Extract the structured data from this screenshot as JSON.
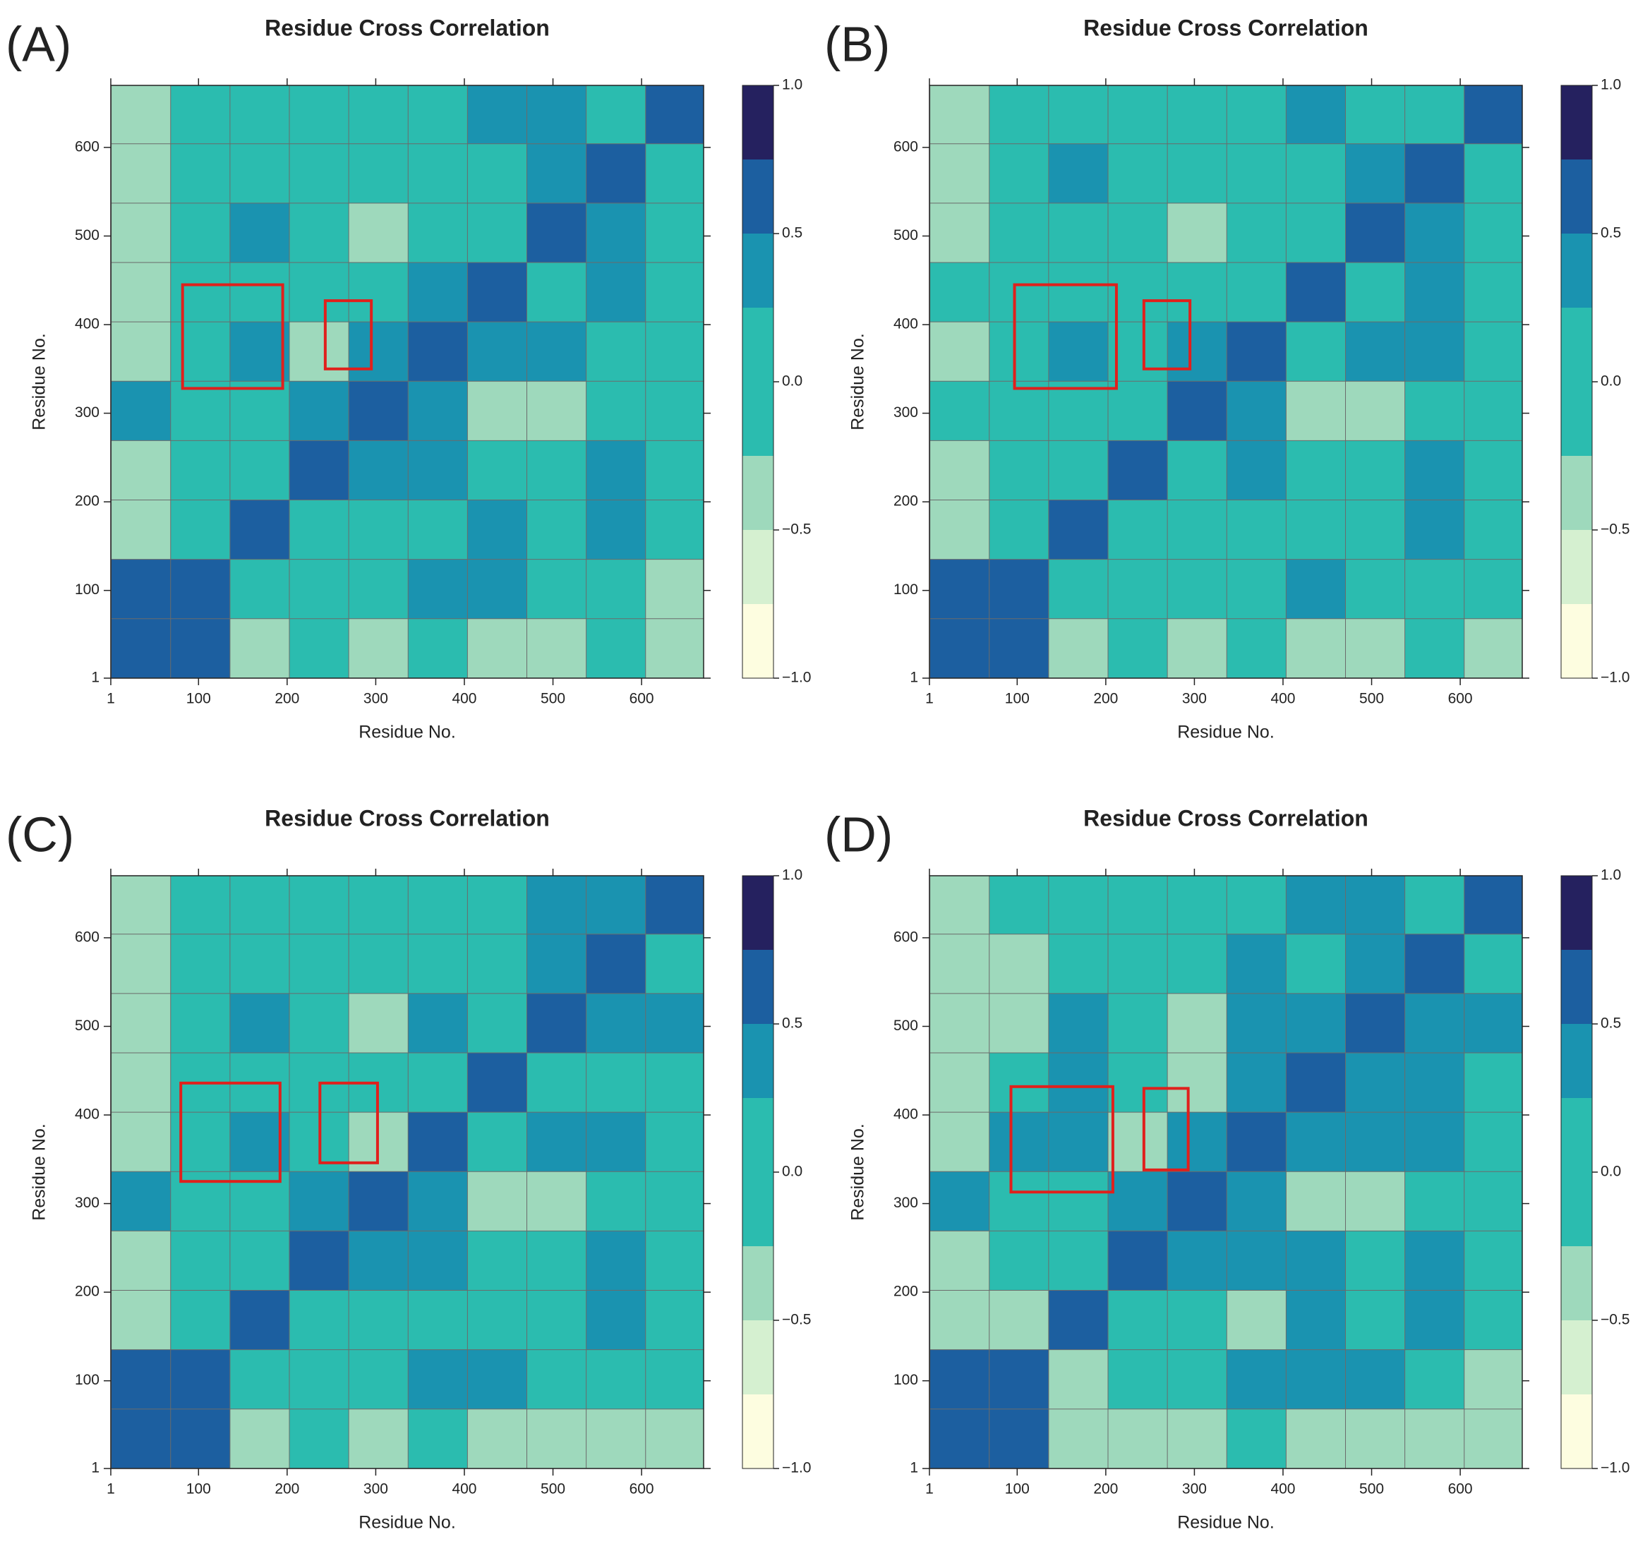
{
  "chart_data": [
    {
      "type": "contour",
      "panel": "(A)",
      "title": "Residue Cross Correlation",
      "xlabel": "Residue No.",
      "ylabel": "Residue No.",
      "xlim": [
        1,
        670
      ],
      "ylim": [
        1,
        670
      ],
      "xticks": [
        1,
        100,
        200,
        300,
        400,
        500,
        600
      ],
      "yticks": [
        1,
        100,
        200,
        300,
        400,
        500,
        600
      ],
      "x": [
        35,
        102,
        169,
        236,
        303,
        370,
        437,
        504,
        571,
        638
      ],
      "y": [
        35,
        102,
        169,
        236,
        303,
        370,
        437,
        504,
        571,
        638
      ],
      "values": [
        [
          0.6,
          0.5,
          -0.3,
          0.1,
          -0.3,
          0.1,
          -0.3,
          -0.3,
          0.1,
          -0.3
        ],
        [
          0.5,
          0.6,
          0.1,
          0.1,
          0.1,
          0.3,
          0.3,
          0.1,
          0.1,
          -0.3
        ],
        [
          -0.3,
          0.1,
          0.6,
          0.1,
          0.1,
          0.1,
          0.3,
          0.1,
          0.3,
          0.1
        ],
        [
          -0.3,
          0.1,
          0.1,
          0.6,
          0.3,
          0.3,
          0.1,
          0.1,
          0.3,
          0.1
        ],
        [
          0.3,
          0.1,
          0.1,
          0.3,
          0.6,
          0.3,
          -0.3,
          -0.3,
          0.1,
          0.1
        ],
        [
          -0.3,
          0.1,
          0.3,
          -0.3,
          0.3,
          0.6,
          0.3,
          0.3,
          0.1,
          0.1
        ],
        [
          -0.3,
          0.1,
          0.1,
          0.1,
          0.1,
          0.3,
          0.6,
          0.1,
          0.3,
          0.1
        ],
        [
          -0.3,
          0.1,
          0.3,
          0.1,
          -0.3,
          0.1,
          0.1,
          0.6,
          0.3,
          0.1
        ],
        [
          -0.3,
          0.1,
          0.1,
          0.1,
          0.1,
          0.1,
          0.1,
          0.3,
          0.6,
          0.1
        ],
        [
          -0.3,
          0.1,
          0.1,
          0.1,
          0.1,
          0.1,
          0.3,
          0.3,
          0.1,
          0.6
        ]
      ],
      "levels": [
        -1,
        -0.75,
        -0.5,
        -0.25,
        0.25,
        0.5,
        0.75,
        1
      ],
      "colors": [
        "#fdfde0",
        "#d5f0d0",
        "#9ed9bc",
        "#2bbcaf",
        "#1a93b0",
        "#1c5fa0",
        "#25215f"
      ],
      "cbar_ticks": [
        {
          "value": -1,
          "label": "−1.0"
        },
        {
          "value": -0.5,
          "label": "−0.5"
        },
        {
          "value": 0,
          "label": "0.0"
        },
        {
          "value": 0.5,
          "label": "0.5"
        },
        {
          "value": 1,
          "label": "1.0"
        }
      ],
      "highlights": [
        {
          "x": [
            82,
            195
          ],
          "y": [
            328,
            445
          ]
        },
        {
          "x": [
            243,
            295
          ],
          "y": [
            350,
            427
          ]
        }
      ],
      "highlight_color": "#e0201c"
    },
    {
      "type": "contour",
      "panel": "(B)",
      "title": "Residue Cross Correlation",
      "xlabel": "Residue No.",
      "ylabel": "Residue No.",
      "xlim": [
        1,
        670
      ],
      "ylim": [
        1,
        670
      ],
      "xticks": [
        1,
        100,
        200,
        300,
        400,
        500,
        600
      ],
      "yticks": [
        1,
        100,
        200,
        300,
        400,
        500,
        600
      ],
      "x": [
        35,
        102,
        169,
        236,
        303,
        370,
        437,
        504,
        571,
        638
      ],
      "y": [
        35,
        102,
        169,
        236,
        303,
        370,
        437,
        504,
        571,
        638
      ],
      "values": [
        [
          0.6,
          0.5,
          -0.3,
          0.1,
          -0.3,
          0.1,
          -0.3,
          -0.3,
          0.1,
          -0.3
        ],
        [
          0.5,
          0.6,
          0.1,
          0.1,
          0.1,
          0.1,
          0.3,
          0.1,
          0.1,
          0.1
        ],
        [
          -0.3,
          0.1,
          0.6,
          0.1,
          0.1,
          0.1,
          0.1,
          0.1,
          0.3,
          0.1
        ],
        [
          -0.3,
          0.1,
          0.1,
          0.6,
          0.1,
          0.3,
          0.1,
          0.1,
          0.3,
          0.1
        ],
        [
          0.1,
          0.1,
          0.1,
          0.1,
          0.6,
          0.3,
          -0.3,
          -0.3,
          0.1,
          0.1
        ],
        [
          -0.3,
          0.1,
          0.3,
          0.1,
          0.3,
          0.6,
          0.1,
          0.3,
          0.3,
          0.1
        ],
        [
          0.1,
          0.1,
          0.1,
          0.1,
          0.1,
          0.1,
          0.6,
          0.1,
          0.3,
          0.1
        ],
        [
          -0.3,
          0.1,
          0.1,
          0.1,
          -0.3,
          0.1,
          0.1,
          0.6,
          0.3,
          0.1
        ],
        [
          -0.3,
          0.1,
          0.3,
          0.1,
          0.1,
          0.1,
          0.1,
          0.3,
          0.6,
          0.1
        ],
        [
          -0.3,
          0.1,
          0.1,
          0.1,
          0.1,
          0.1,
          0.3,
          0.1,
          0.1,
          0.6
        ]
      ],
      "levels": [
        -1,
        -0.75,
        -0.5,
        -0.25,
        0.25,
        0.5,
        0.75,
        1
      ],
      "colors": [
        "#fdfde0",
        "#d5f0d0",
        "#9ed9bc",
        "#2bbcaf",
        "#1a93b0",
        "#1c5fa0",
        "#25215f"
      ],
      "cbar_ticks": [
        {
          "value": -1,
          "label": "−1.0"
        },
        {
          "value": -0.5,
          "label": "−0.5"
        },
        {
          "value": 0,
          "label": "0.0"
        },
        {
          "value": 0.5,
          "label": "0.5"
        },
        {
          "value": 1,
          "label": "1.0"
        }
      ],
      "highlights": [
        {
          "x": [
            97,
            212
          ],
          "y": [
            328,
            445
          ]
        },
        {
          "x": [
            243,
            295
          ],
          "y": [
            350,
            427
          ]
        }
      ],
      "highlight_color": "#e0201c"
    },
    {
      "type": "contour",
      "panel": "(C)",
      "title": "Residue Cross Correlation",
      "xlabel": "Residue No.",
      "ylabel": "Residue No.",
      "xlim": [
        1,
        670
      ],
      "ylim": [
        1,
        670
      ],
      "xticks": [
        1,
        100,
        200,
        300,
        400,
        500,
        600
      ],
      "yticks": [
        1,
        100,
        200,
        300,
        400,
        500,
        600
      ],
      "x": [
        35,
        102,
        169,
        236,
        303,
        370,
        437,
        504,
        571,
        638
      ],
      "y": [
        35,
        102,
        169,
        236,
        303,
        370,
        437,
        504,
        571,
        638
      ],
      "values": [
        [
          0.6,
          0.5,
          -0.3,
          0.1,
          -0.3,
          0.1,
          -0.3,
          -0.3,
          -0.3,
          -0.3
        ],
        [
          0.5,
          0.6,
          0.1,
          0.1,
          0.1,
          0.3,
          0.3,
          0.1,
          0.1,
          0.1
        ],
        [
          -0.3,
          0.1,
          0.6,
          0.1,
          0.1,
          0.1,
          0.1,
          0.1,
          0.3,
          0.1
        ],
        [
          -0.3,
          0.1,
          0.1,
          0.6,
          0.3,
          0.3,
          0.1,
          0.1,
          0.3,
          0.1
        ],
        [
          0.3,
          0.1,
          0.1,
          0.3,
          0.6,
          0.3,
          -0.3,
          -0.3,
          0.1,
          0.1
        ],
        [
          -0.3,
          0.1,
          0.3,
          0.1,
          -0.3,
          0.6,
          0.1,
          0.3,
          0.3,
          0.1
        ],
        [
          -0.3,
          0.1,
          0.1,
          0.1,
          0.1,
          0.1,
          0.6,
          0.1,
          0.1,
          0.1
        ],
        [
          -0.3,
          0.1,
          0.3,
          0.1,
          -0.3,
          0.3,
          0.1,
          0.6,
          0.3,
          0.3
        ],
        [
          -0.3,
          0.1,
          0.1,
          0.1,
          0.1,
          0.1,
          0.1,
          0.3,
          0.6,
          0.1
        ],
        [
          -0.3,
          0.1,
          0.1,
          0.1,
          0.1,
          0.1,
          0.1,
          0.3,
          0.3,
          0.6
        ]
      ],
      "levels": [
        -1,
        -0.75,
        -0.5,
        -0.25,
        0.25,
        0.5,
        0.75,
        1
      ],
      "colors": [
        "#fdfde0",
        "#d5f0d0",
        "#9ed9bc",
        "#2bbcaf",
        "#1a93b0",
        "#1c5fa0",
        "#25215f"
      ],
      "cbar_ticks": [
        {
          "value": -1,
          "label": "−1.0"
        },
        {
          "value": -0.5,
          "label": "−0.5"
        },
        {
          "value": 0,
          "label": "0.0"
        },
        {
          "value": 0.5,
          "label": "0.5"
        },
        {
          "value": 1,
          "label": "1.0"
        }
      ],
      "highlights": [
        {
          "x": [
            80,
            192
          ],
          "y": [
            325,
            436
          ]
        },
        {
          "x": [
            237,
            302
          ],
          "y": [
            346,
            436
          ]
        }
      ],
      "highlight_color": "#e0201c"
    },
    {
      "type": "contour",
      "panel": "(D)",
      "title": "Residue Cross Correlation",
      "xlabel": "Residue No.",
      "ylabel": "Residue No.",
      "xlim": [
        1,
        670
      ],
      "ylim": [
        1,
        670
      ],
      "xticks": [
        1,
        100,
        200,
        300,
        400,
        500,
        600
      ],
      "yticks": [
        1,
        100,
        200,
        300,
        400,
        500,
        600
      ],
      "x": [
        35,
        102,
        169,
        236,
        303,
        370,
        437,
        504,
        571,
        638
      ],
      "y": [
        35,
        102,
        169,
        236,
        303,
        370,
        437,
        504,
        571,
        638
      ],
      "values": [
        [
          0.6,
          0.5,
          -0.3,
          -0.3,
          -0.3,
          0.1,
          -0.3,
          -0.3,
          -0.3,
          -0.3
        ],
        [
          0.5,
          0.6,
          -0.3,
          0.1,
          0.1,
          0.3,
          0.3,
          0.3,
          0.1,
          -0.3
        ],
        [
          -0.3,
          -0.3,
          0.6,
          0.1,
          0.1,
          -0.3,
          0.3,
          0.1,
          0.3,
          0.1
        ],
        [
          -0.3,
          0.1,
          0.1,
          0.6,
          0.3,
          0.3,
          0.3,
          0.1,
          0.3,
          0.1
        ],
        [
          0.3,
          0.1,
          0.1,
          0.3,
          0.6,
          0.3,
          -0.3,
          -0.3,
          0.1,
          0.1
        ],
        [
          -0.3,
          0.3,
          0.3,
          -0.3,
          0.3,
          0.6,
          0.3,
          0.3,
          0.3,
          0.1
        ],
        [
          -0.3,
          0.1,
          0.3,
          0.1,
          -0.3,
          0.3,
          0.6,
          0.3,
          0.3,
          0.1
        ],
        [
          -0.3,
          -0.3,
          0.3,
          0.1,
          -0.3,
          0.3,
          0.3,
          0.6,
          0.3,
          0.3
        ],
        [
          -0.3,
          -0.3,
          0.1,
          0.1,
          0.1,
          0.3,
          0.1,
          0.3,
          0.6,
          0.1
        ],
        [
          -0.3,
          0.1,
          0.1,
          0.1,
          0.1,
          0.1,
          0.3,
          0.3,
          0.1,
          0.6
        ]
      ],
      "levels": [
        -1,
        -0.75,
        -0.5,
        -0.25,
        0.25,
        0.5,
        0.75,
        1
      ],
      "colors": [
        "#fdfde0",
        "#d5f0d0",
        "#9ed9bc",
        "#2bbcaf",
        "#1a93b0",
        "#1c5fa0",
        "#25215f"
      ],
      "cbar_ticks": [
        {
          "value": -1,
          "label": "−1.0"
        },
        {
          "value": -0.5,
          "label": "−0.5"
        },
        {
          "value": 0,
          "label": "0.0"
        },
        {
          "value": 0.5,
          "label": "0.5"
        },
        {
          "value": 1,
          "label": "1.0"
        }
      ],
      "highlights": [
        {
          "x": [
            93,
            208
          ],
          "y": [
            313,
            432
          ]
        },
        {
          "x": [
            243,
            293
          ],
          "y": [
            338,
            430
          ]
        }
      ],
      "highlight_color": "#e0201c"
    }
  ]
}
